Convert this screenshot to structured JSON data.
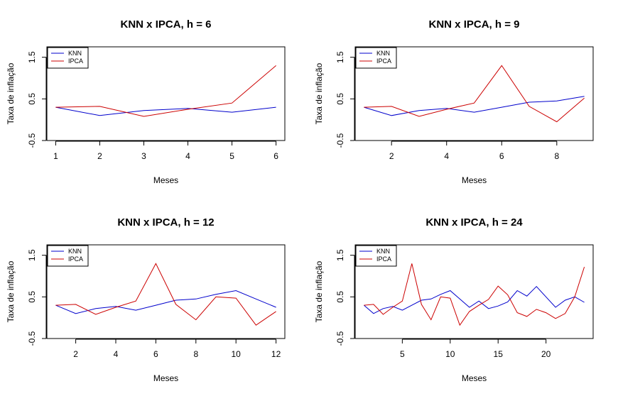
{
  "colors": {
    "knn": "#0000cc",
    "ipca": "#cc0000"
  },
  "chart_data": [
    {
      "type": "line",
      "title": "KNN x IPCA, h = 6",
      "xlabel": "Meses",
      "ylabel": "Taxa de inflação",
      "xlim": [
        1,
        6
      ],
      "ylim": [
        -0.5,
        1.75
      ],
      "xticks": [
        1,
        2,
        3,
        4,
        5,
        6
      ],
      "yticks": [
        -0.5,
        0.5,
        1.5
      ],
      "ytick_labels": [
        "-0.5",
        "0.5",
        "1.5"
      ],
      "legend": "top-left",
      "x": [
        1,
        2,
        3,
        4,
        5,
        6
      ],
      "series": [
        {
          "name": "KNN",
          "color": "#0000cc",
          "values": [
            0.3,
            0.1,
            0.22,
            0.27,
            0.18,
            0.3
          ]
        },
        {
          "name": "IPCA",
          "color": "#cc0000",
          "values": [
            0.3,
            0.32,
            0.08,
            0.25,
            0.4,
            1.3
          ]
        }
      ]
    },
    {
      "type": "line",
      "title": "KNN x IPCA, h = 9",
      "xlabel": "Meses",
      "ylabel": "Taxa de inflação",
      "xlim": [
        1,
        9
      ],
      "ylim": [
        -0.5,
        1.75
      ],
      "xticks": [
        2,
        4,
        6,
        8
      ],
      "yticks": [
        -0.5,
        0.5,
        1.5
      ],
      "ytick_labels": [
        "-0.5",
        "0.5",
        "1.5"
      ],
      "legend": "top-left",
      "x": [
        1,
        2,
        3,
        4,
        5,
        6,
        7,
        8,
        9
      ],
      "series": [
        {
          "name": "KNN",
          "color": "#0000cc",
          "values": [
            0.3,
            0.1,
            0.22,
            0.27,
            0.18,
            0.3,
            0.42,
            0.45,
            0.56
          ]
        },
        {
          "name": "IPCA",
          "color": "#cc0000",
          "values": [
            0.3,
            0.32,
            0.08,
            0.25,
            0.4,
            1.3,
            0.32,
            -0.05,
            0.52
          ]
        }
      ]
    },
    {
      "type": "line",
      "title": "KNN x IPCA, h = 12",
      "xlabel": "Meses",
      "ylabel": "Taxa de inflação",
      "xlim": [
        1,
        12
      ],
      "ylim": [
        -0.5,
        1.75
      ],
      "xticks": [
        2,
        4,
        6,
        8,
        10,
        12
      ],
      "yticks": [
        -0.5,
        0.5,
        1.5
      ],
      "ytick_labels": [
        "-0.5",
        "0.5",
        "1.5"
      ],
      "legend": "top-left",
      "x": [
        1,
        2,
        3,
        4,
        5,
        6,
        7,
        8,
        9,
        10,
        11,
        12
      ],
      "series": [
        {
          "name": "KNN",
          "color": "#0000cc",
          "values": [
            0.3,
            0.1,
            0.22,
            0.27,
            0.18,
            0.3,
            0.42,
            0.45,
            0.56,
            0.65,
            0.45,
            0.25
          ]
        },
        {
          "name": "IPCA",
          "color": "#cc0000",
          "values": [
            0.3,
            0.32,
            0.08,
            0.25,
            0.4,
            1.3,
            0.32,
            -0.05,
            0.5,
            0.47,
            -0.18,
            0.15
          ]
        }
      ]
    },
    {
      "type": "line",
      "title": "KNN x IPCA, h = 24",
      "xlabel": "Meses",
      "ylabel": "Taxa de inflação",
      "xlim": [
        1,
        24
      ],
      "ylim": [
        -0.5,
        1.75
      ],
      "xticks": [
        5,
        10,
        15,
        20
      ],
      "yticks": [
        -0.5,
        0.5,
        1.5
      ],
      "ytick_labels": [
        "-0.5",
        "0.5",
        "1.5"
      ],
      "legend": "top-left",
      "x": [
        1,
        2,
        3,
        4,
        5,
        6,
        7,
        8,
        9,
        10,
        11,
        12,
        13,
        14,
        15,
        16,
        17,
        18,
        19,
        20,
        21,
        22,
        23,
        24
      ],
      "series": [
        {
          "name": "KNN",
          "color": "#0000cc",
          "values": [
            0.3,
            0.1,
            0.22,
            0.27,
            0.18,
            0.3,
            0.42,
            0.45,
            0.56,
            0.65,
            0.45,
            0.25,
            0.4,
            0.22,
            0.28,
            0.38,
            0.65,
            0.52,
            0.75,
            0.5,
            0.25,
            0.42,
            0.5,
            0.37
          ]
        },
        {
          "name": "IPCA",
          "color": "#cc0000",
          "values": [
            0.3,
            0.32,
            0.08,
            0.25,
            0.4,
            1.3,
            0.32,
            -0.05,
            0.5,
            0.47,
            -0.18,
            0.15,
            0.3,
            0.44,
            0.76,
            0.55,
            0.12,
            0.03,
            0.2,
            0.12,
            -0.02,
            0.1,
            0.5,
            1.22
          ]
        }
      ]
    }
  ]
}
